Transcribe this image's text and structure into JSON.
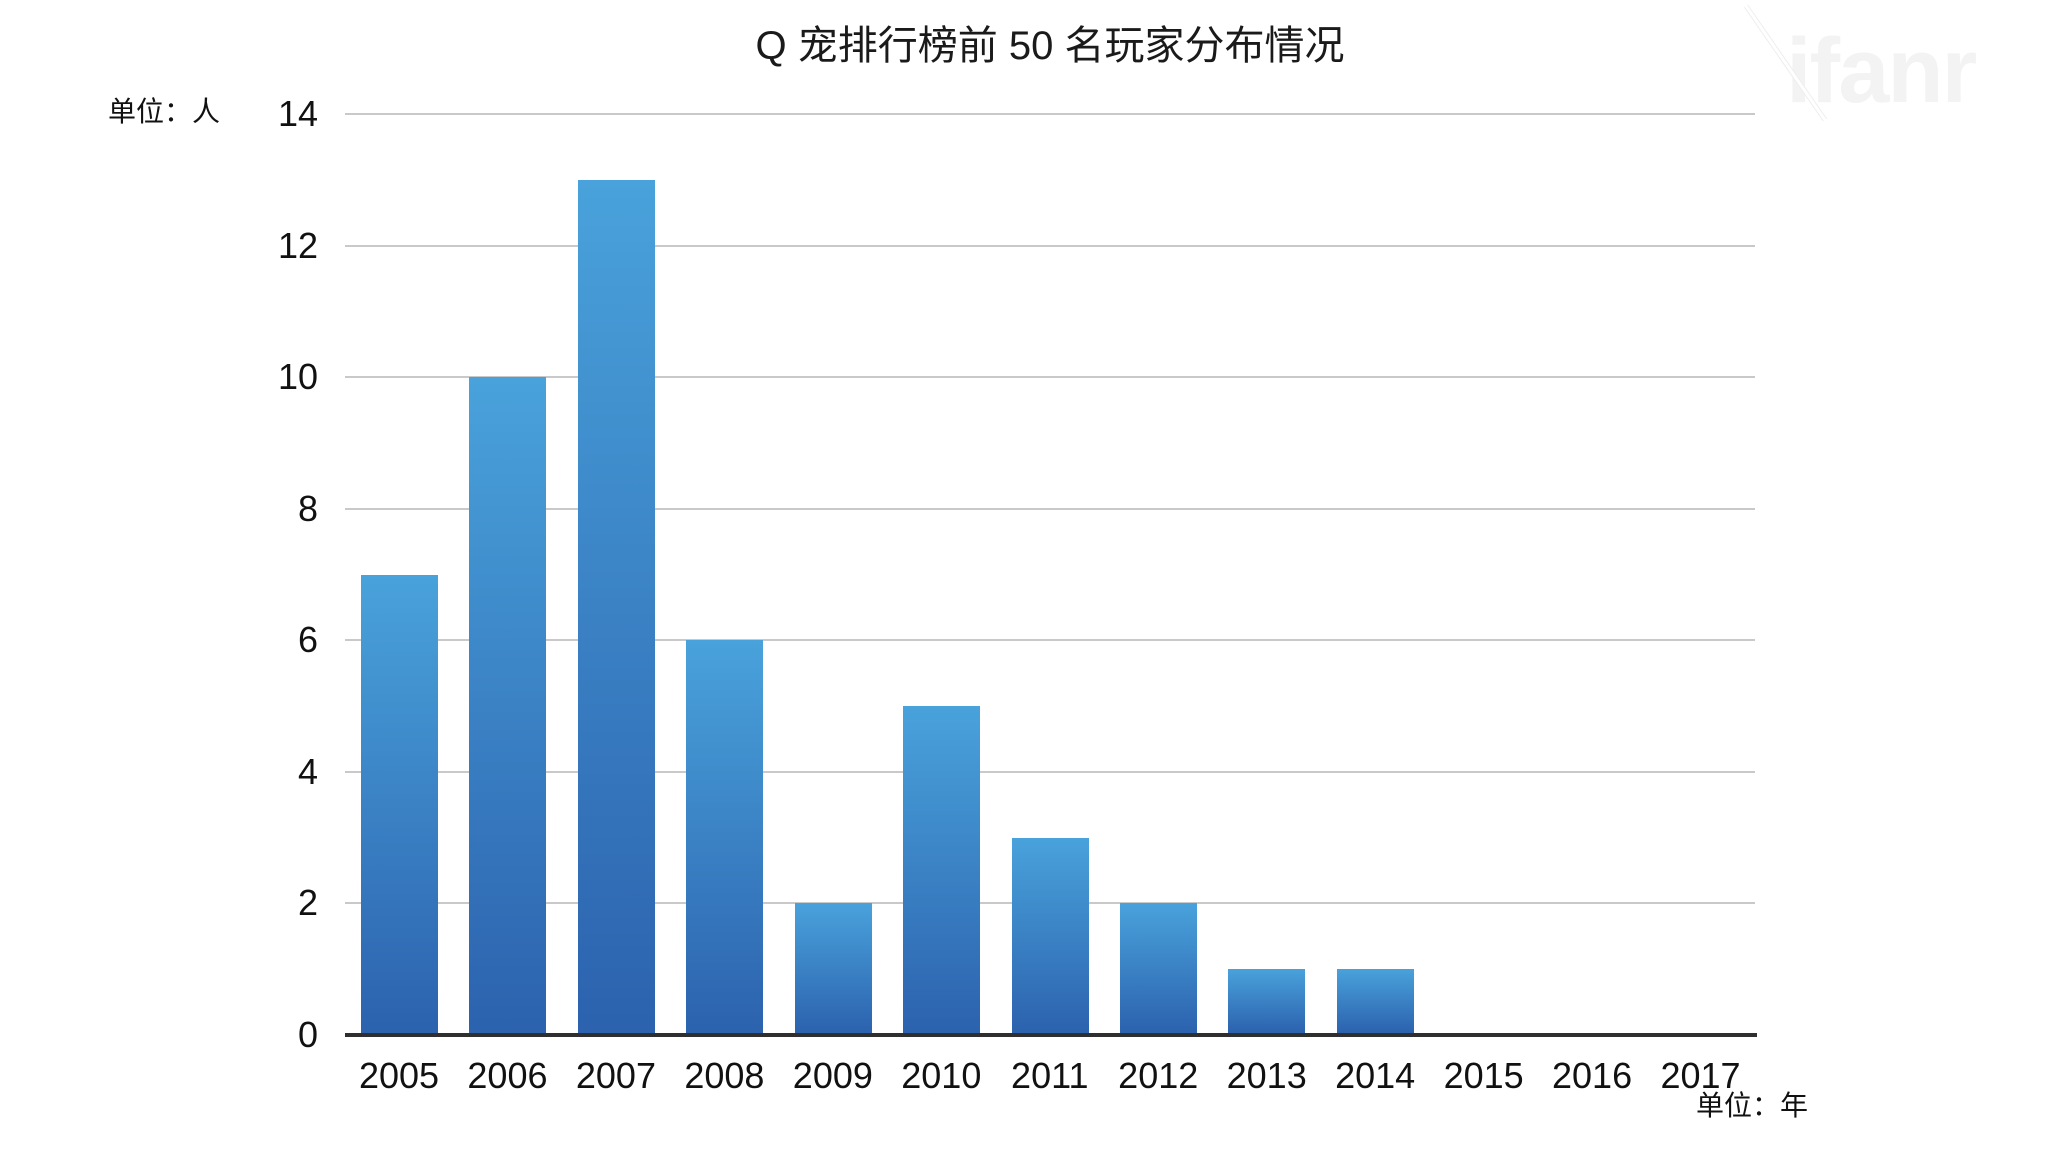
{
  "page": {
    "background": "#ffffff"
  },
  "watermark": {
    "text": "ifanr",
    "color": "#f3f3f3"
  },
  "chart_data": {
    "type": "bar",
    "title": "Q 宠排行榜前 50 名玩家分布情况",
    "ylabel": "单位：人",
    "xlabel": "单位：年",
    "categories": [
      "2005",
      "2006",
      "2007",
      "2008",
      "2009",
      "2010",
      "2011",
      "2012",
      "2013",
      "2014",
      "2015",
      "2016",
      "2017"
    ],
    "values": [
      7,
      10,
      13,
      6,
      2,
      5,
      3,
      2,
      1,
      1,
      0,
      0,
      0
    ],
    "ylim": [
      0,
      14
    ],
    "ytick_step": 2,
    "yticks": [
      0,
      2,
      4,
      6,
      8,
      10,
      12,
      14
    ],
    "grid": true,
    "legend_position": "none",
    "colors": {
      "bar_top": "#49a2db",
      "bar_bottom": "#2c62ae",
      "gridline": "#c9c9c9",
      "axis": "#2f2f2f",
      "text": "#111111"
    }
  }
}
